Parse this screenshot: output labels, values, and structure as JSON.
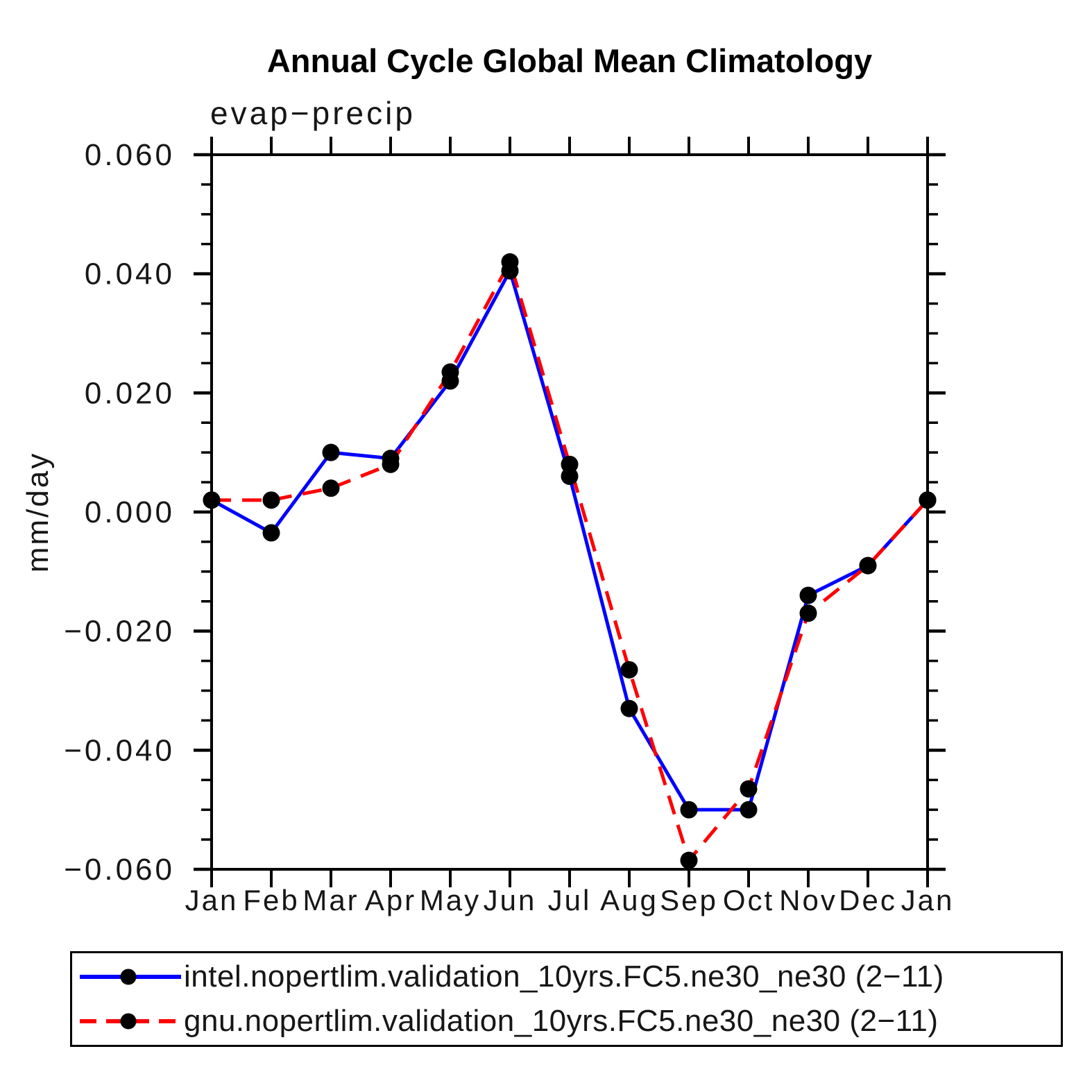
{
  "chart_data": {
    "type": "line",
    "title": "Annual Cycle Global Mean Climatology",
    "subtitle": "evap−precip",
    "ylabel": "mm/day",
    "categories": [
      "Jan",
      "Feb",
      "Mar",
      "Apr",
      "May",
      "Jun",
      "Jul",
      "Aug",
      "Sep",
      "Oct",
      "Nov",
      "Dec",
      "Jan"
    ],
    "ylim": [
      -0.06,
      0.06
    ],
    "ytick_major_step": 0.02,
    "ytick_minor_step": 0.005,
    "yticks": [
      {
        "label": "0.060",
        "value": 0.06
      },
      {
        "label": "0.040",
        "value": 0.04
      },
      {
        "label": "0.020",
        "value": 0.02
      },
      {
        "label": "0.000",
        "value": 0.0
      },
      {
        "label": "−0.020",
        "value": -0.02
      },
      {
        "label": "−0.040",
        "value": -0.04
      },
      {
        "label": "−0.060",
        "value": -0.06
      }
    ],
    "grid": "off",
    "legend_position": "bottom",
    "marker_color": "#000000",
    "series": [
      {
        "name": "intel.nopertlim.validation_10yrs.FC5.ne30_ne30 (2−11)",
        "color": "#0000ff",
        "style": "solid",
        "dash": "none",
        "values": [
          0.002,
          -0.0035,
          0.01,
          0.009,
          0.022,
          0.0405,
          0.006,
          -0.033,
          -0.05,
          -0.05,
          -0.014,
          -0.009,
          0.002
        ]
      },
      {
        "name": "gnu.nopertlim.validation_10yrs.FC5.ne30_ne30 (2−11)",
        "color": "#ff0000",
        "style": "dashed",
        "dash": "28 16",
        "values": [
          0.002,
          0.002,
          0.004,
          0.008,
          0.0235,
          0.042,
          0.008,
          -0.0265,
          -0.0585,
          -0.0465,
          -0.017,
          -0.009,
          0.002
        ]
      }
    ]
  }
}
